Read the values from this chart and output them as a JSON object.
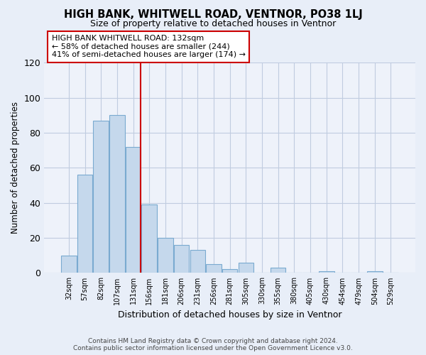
{
  "title": "HIGH BANK, WHITWELL ROAD, VENTNOR, PO38 1LJ",
  "subtitle": "Size of property relative to detached houses in Ventnor",
  "xlabel": "Distribution of detached houses by size in Ventnor",
  "ylabel": "Number of detached properties",
  "bar_color": "#c5d8ec",
  "bar_edge_color": "#7aaad0",
  "highlight_line_color": "#cc0000",
  "categories": [
    "32sqm",
    "57sqm",
    "82sqm",
    "107sqm",
    "131sqm",
    "156sqm",
    "181sqm",
    "206sqm",
    "231sqm",
    "256sqm",
    "281sqm",
    "305sqm",
    "330sqm",
    "355sqm",
    "380sqm",
    "405sqm",
    "430sqm",
    "454sqm",
    "479sqm",
    "504sqm",
    "529sqm"
  ],
  "values": [
    10,
    56,
    87,
    90,
    72,
    39,
    20,
    16,
    13,
    5,
    2,
    6,
    0,
    3,
    0,
    0,
    1,
    0,
    0,
    1,
    0
  ],
  "highlight_bar_index": 4,
  "ylim": [
    0,
    120
  ],
  "yticks": [
    0,
    20,
    40,
    60,
    80,
    100,
    120
  ],
  "annotation_text": "HIGH BANK WHITWELL ROAD: 132sqm\n← 58% of detached houses are smaller (244)\n41% of semi-detached houses are larger (174) →",
  "footer_line1": "Contains HM Land Registry data © Crown copyright and database right 2024.",
  "footer_line2": "Contains public sector information licensed under the Open Government Licence v3.0.",
  "background_color": "#e8eef8",
  "plot_background": "#eef2fa",
  "grid_color": "#c0cce0"
}
